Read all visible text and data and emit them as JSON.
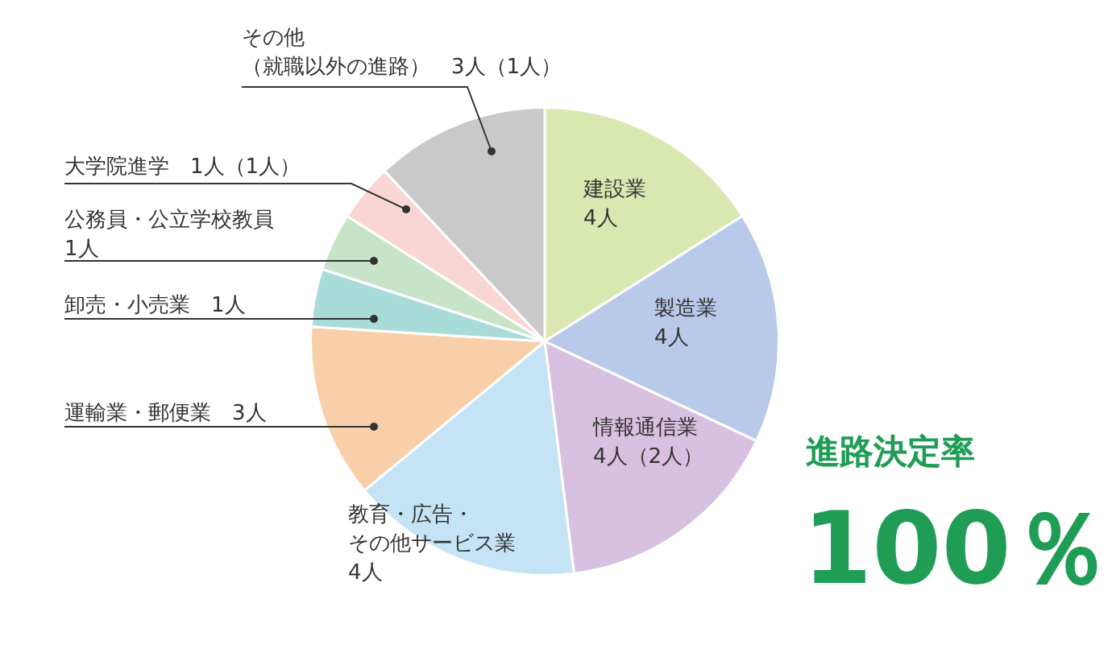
{
  "chart_data": {
    "type": "pie",
    "categories": [
      "建設業",
      "製造業",
      "情報通信業",
      "教育・広告・その他サービス業",
      "運輸業・郵便業",
      "卸売・小売業",
      "公務員・公立学校教員",
      "大学院進学",
      "その他（就職以外の進路）"
    ],
    "values": [
      4,
      4,
      4,
      4,
      3,
      1,
      1,
      1,
      3
    ],
    "value_labels": [
      "4人",
      "4人",
      "4人（2人）",
      "4人",
      "3人",
      "1人",
      "1人",
      "1人（1人）",
      "3人（1人）"
    ],
    "colors": [
      "#d9e8b0",
      "#b9c9e9",
      "#d7c0e0",
      "#c4e4f6",
      "#f9cfa9",
      "#a9dcd8",
      "#c7e4c9",
      "#f9d6d4",
      "#c9c9c9"
    ],
    "annotations": [
      "進路決定率",
      "100％"
    ]
  }
}
